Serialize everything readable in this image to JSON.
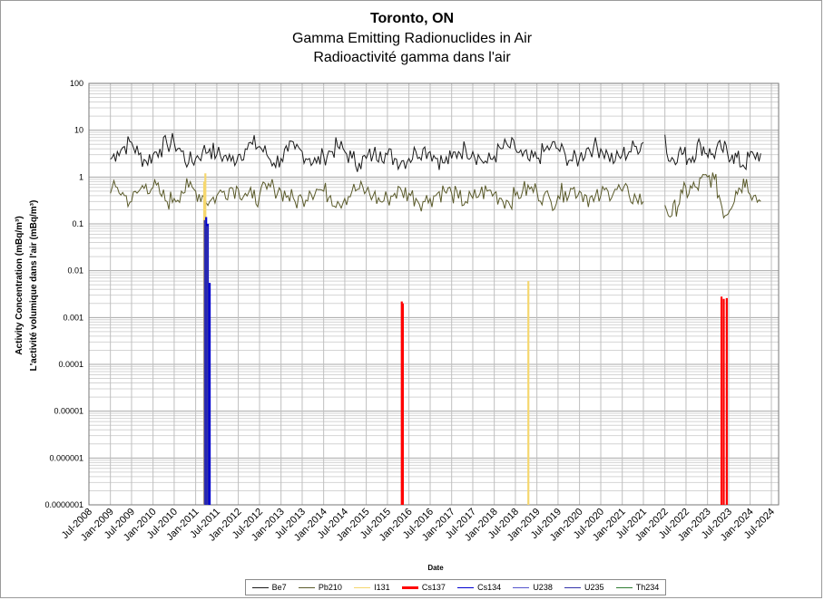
{
  "chart_data": {
    "type": "line",
    "title": "Toronto, ON",
    "subtitle": [
      "Gamma Emitting Radionuclides in Air",
      "Radioactivité gamma dans l'air"
    ],
    "xlabel": "Date",
    "ylabel": [
      "Activity Concentration  (mBq/m³)",
      "L'activité volumique dans l'air (mBq/m³)"
    ],
    "y_scale": "log",
    "ylim": [
      1e-07,
      100
    ],
    "y_tick_labels": [
      "100",
      "10",
      "1",
      "0.1",
      "0.01",
      "0.001",
      "0.0001",
      "0.00001",
      "0.000001",
      "0.0000001"
    ],
    "xlim": [
      "2008-07-01",
      "2024-09-01"
    ],
    "x_tick_labels": [
      "Jul-2008",
      "Jan-2009",
      "Jul-2009",
      "Jan-2010",
      "Jul-2010",
      "Jan-2011",
      "Jul-2011",
      "Jan-2012",
      "Jul-2012",
      "Jan-2013",
      "Jul-2013",
      "Jan-2014",
      "Jul-2014",
      "Jan-2015",
      "Jul-2015",
      "Jan-2016",
      "Jul-2016",
      "Jan-2017",
      "Jul-2017",
      "Jan-2018",
      "Jul-2018",
      "Jan-2019",
      "Jul-2019",
      "Jan-2020",
      "Jul-2020",
      "Jan-2021",
      "Jul-2021",
      "Jan-2022",
      "Jul-2022",
      "Jan-2023",
      "Jul-2023",
      "Jan-2024",
      "Jul-2024"
    ],
    "grid": true,
    "legend_placement": "bottom",
    "series": [
      {
        "name": "Be7",
        "color": "#1a1a1a",
        "kind": "line",
        "points": [
          [
            "2009-01",
            2.4
          ],
          [
            "2009-03",
            3.5
          ],
          [
            "2009-05",
            4.5
          ],
          [
            "2009-07",
            5.5
          ],
          [
            "2009-09",
            3.0
          ],
          [
            "2009-11",
            2.2
          ],
          [
            "2010-01",
            3.0
          ],
          [
            "2010-03",
            4.0
          ],
          [
            "2010-05",
            5.0
          ],
          [
            "2010-07",
            5.5
          ],
          [
            "2010-09",
            3.5
          ],
          [
            "2010-11",
            2.0
          ],
          [
            "2011-01",
            2.5
          ],
          [
            "2011-03",
            3.5
          ],
          [
            "2011-05",
            4.0
          ],
          [
            "2011-07",
            3.0
          ],
          [
            "2011-09",
            2.8
          ],
          [
            "2011-11",
            2.2
          ],
          [
            "2012-01",
            3.0
          ],
          [
            "2012-03",
            4.0
          ],
          [
            "2012-05",
            5.0
          ],
          [
            "2012-07",
            4.5
          ],
          [
            "2012-09",
            3.0
          ],
          [
            "2012-11",
            2.0
          ],
          [
            "2013-01",
            2.5
          ],
          [
            "2013-03",
            3.5
          ],
          [
            "2013-05",
            4.0
          ],
          [
            "2013-07",
            3.5
          ],
          [
            "2013-09",
            2.5
          ],
          [
            "2013-11",
            2.0
          ],
          [
            "2014-01",
            2.8
          ],
          [
            "2014-03",
            3.5
          ],
          [
            "2014-05",
            4.5
          ],
          [
            "2014-07",
            3.5
          ],
          [
            "2014-09",
            2.5
          ],
          [
            "2014-11",
            2.0
          ],
          [
            "2015-01",
            2.5
          ],
          [
            "2015-03",
            3.0
          ],
          [
            "2015-05",
            3.5
          ],
          [
            "2015-07",
            3.0
          ],
          [
            "2015-09",
            2.5
          ],
          [
            "2015-11",
            2.2
          ],
          [
            "2016-01",
            2.5
          ],
          [
            "2016-03",
            3.5
          ],
          [
            "2016-05",
            4.0
          ],
          [
            "2016-07",
            3.5
          ],
          [
            "2016-09",
            2.5
          ],
          [
            "2016-11",
            2.0
          ],
          [
            "2017-01",
            2.5
          ],
          [
            "2017-03",
            3.5
          ],
          [
            "2017-05",
            4.0
          ],
          [
            "2017-07",
            3.5
          ],
          [
            "2017-09",
            2.5
          ],
          [
            "2017-11",
            2.0
          ],
          [
            "2018-01",
            2.8
          ],
          [
            "2018-03",
            4.0
          ],
          [
            "2018-05",
            4.5
          ],
          [
            "2018-07",
            4.0
          ],
          [
            "2018-09",
            2.8
          ],
          [
            "2018-11",
            2.2
          ],
          [
            "2019-01",
            2.5
          ],
          [
            "2019-03",
            3.5
          ],
          [
            "2019-05",
            4.5
          ],
          [
            "2019-07",
            4.0
          ],
          [
            "2019-09",
            3.0
          ],
          [
            "2019-11",
            2.2
          ],
          [
            "2020-01",
            2.5
          ],
          [
            "2020-03",
            4.0
          ],
          [
            "2020-05",
            4.5
          ],
          [
            "2020-07",
            4.0
          ],
          [
            "2020-09",
            3.0
          ],
          [
            "2020-11",
            2.2
          ],
          [
            "2021-01",
            3.0
          ],
          [
            "2021-03",
            3.5
          ],
          [
            "2021-05",
            4.5
          ],
          [
            "2021-07",
            5.5
          ],
          [
            null,
            null
          ],
          [
            "2022-01",
            8.0
          ],
          [
            "2022-02",
            2.2
          ],
          [
            "2022-05",
            3.5
          ],
          [
            "2022-08",
            2.5
          ],
          [
            "2022-11",
            5.0
          ],
          [
            "2023-02",
            3.0
          ],
          [
            "2023-05",
            4.0
          ],
          [
            "2023-08",
            3.0
          ],
          [
            "2023-11",
            1.8
          ],
          [
            "2024-02",
            3.0
          ],
          [
            "2024-04",
            3.2
          ]
        ],
        "jitter": true
      },
      {
        "name": "Pb210",
        "color": "#5a5a2a",
        "kind": "line",
        "points": [
          [
            "2009-01",
            0.45
          ],
          [
            "2009-03",
            0.6
          ],
          [
            "2009-05",
            0.4
          ],
          [
            "2009-07",
            0.3
          ],
          [
            "2009-09",
            0.5
          ],
          [
            "2009-11",
            0.7
          ],
          [
            "2010-01",
            0.6
          ],
          [
            "2010-03",
            0.45
          ],
          [
            "2010-05",
            0.3
          ],
          [
            "2010-07",
            0.35
          ],
          [
            "2010-09",
            0.5
          ],
          [
            "2010-11",
            0.6
          ],
          [
            "2011-01",
            0.5
          ],
          [
            "2011-03",
            0.4
          ],
          [
            "2011-05",
            0.3
          ],
          [
            "2011-07",
            0.4
          ],
          [
            "2011-09",
            0.5
          ],
          [
            "2011-11",
            0.6
          ],
          [
            "2012-01",
            0.55
          ],
          [
            "2012-03",
            0.45
          ],
          [
            "2012-05",
            0.35
          ],
          [
            "2012-07",
            0.4
          ],
          [
            "2012-09",
            0.55
          ],
          [
            "2012-11",
            0.6
          ],
          [
            "2013-01",
            0.5
          ],
          [
            "2013-03",
            0.4
          ],
          [
            "2013-05",
            0.3
          ],
          [
            "2013-07",
            0.35
          ],
          [
            "2013-09",
            0.5
          ],
          [
            "2013-11",
            0.55
          ],
          [
            "2014-01",
            0.5
          ],
          [
            "2014-03",
            0.4
          ],
          [
            "2014-05",
            0.3
          ],
          [
            "2014-07",
            0.35
          ],
          [
            "2014-09",
            0.5
          ],
          [
            "2014-11",
            0.55
          ],
          [
            "2015-01",
            0.5
          ],
          [
            "2015-03",
            0.4
          ],
          [
            "2015-05",
            0.3
          ],
          [
            "2015-07",
            0.35
          ],
          [
            "2015-09",
            0.45
          ],
          [
            "2015-11",
            0.5
          ],
          [
            "2016-01",
            0.45
          ],
          [
            "2016-03",
            0.35
          ],
          [
            "2016-05",
            0.3
          ],
          [
            "2016-07",
            0.35
          ],
          [
            "2016-09",
            0.45
          ],
          [
            "2016-11",
            0.5
          ],
          [
            "2017-01",
            0.45
          ],
          [
            "2017-03",
            0.35
          ],
          [
            "2017-05",
            0.3
          ],
          [
            "2017-07",
            0.35
          ],
          [
            "2017-09",
            0.45
          ],
          [
            "2017-11",
            0.5
          ],
          [
            "2018-01",
            0.45
          ],
          [
            "2018-03",
            0.35
          ],
          [
            "2018-05",
            0.3
          ],
          [
            "2018-07",
            0.4
          ],
          [
            "2018-09",
            0.5
          ],
          [
            "2018-11",
            0.55
          ],
          [
            "2019-01",
            0.5
          ],
          [
            "2019-03",
            0.4
          ],
          [
            "2019-05",
            0.3
          ],
          [
            "2019-07",
            0.4
          ],
          [
            "2019-09",
            0.5
          ],
          [
            "2019-11",
            0.55
          ],
          [
            "2020-01",
            0.5
          ],
          [
            "2020-03",
            0.4
          ],
          [
            "2020-05",
            0.3
          ],
          [
            "2020-07",
            0.4
          ],
          [
            "2020-09",
            0.5
          ],
          [
            "2020-11",
            0.55
          ],
          [
            "2021-01",
            0.5
          ],
          [
            "2021-03",
            0.4
          ],
          [
            "2021-05",
            0.35
          ],
          [
            "2021-07",
            0.3
          ],
          [
            null,
            null
          ],
          [
            "2022-01",
            0.25
          ],
          [
            "2022-03",
            0.15
          ],
          [
            "2022-06",
            0.45
          ],
          [
            "2022-10",
            0.6
          ],
          [
            "2023-01",
            1.0
          ],
          [
            "2023-03",
            0.9
          ],
          [
            "2023-06",
            0.15
          ],
          [
            "2023-09",
            0.5
          ],
          [
            "2023-12",
            0.9
          ],
          [
            "2024-02",
            0.4
          ],
          [
            "2024-04",
            0.3
          ]
        ],
        "jitter": true
      },
      {
        "name": "I131",
        "color": "#f5d76e",
        "kind": "spike",
        "points": [
          [
            "2011-03-15",
            0.8
          ],
          [
            "2011-03-25",
            1.2
          ],
          [
            "2018-10-20",
            0.006
          ]
        ]
      },
      {
        "name": "Cs137",
        "color": "#ff0000",
        "kind": "spike",
        "points": [
          [
            "2015-11-01",
            0.0022
          ],
          [
            "2015-11-10",
            0.002
          ],
          [
            "2023-05-01",
            0.0028
          ],
          [
            "2023-05-20",
            0.0025
          ],
          [
            "2023-06-15",
            0.0026
          ]
        ]
      },
      {
        "name": "Cs134",
        "color": "#0000d0",
        "kind": "spike",
        "points": [
          [
            "2011-04-01",
            0.14
          ],
          [
            "2011-04-15",
            0.1
          ],
          [
            "2011-05-01",
            0.0055
          ]
        ]
      },
      {
        "name": "U238",
        "color": "#5555cc",
        "kind": "spike",
        "points": []
      },
      {
        "name": "U235",
        "color": "#3333aa",
        "kind": "spike",
        "points": [
          [
            "2011-03-20",
            0.12
          ],
          [
            "2011-04-10",
            0.09
          ]
        ]
      },
      {
        "name": "Th234",
        "color": "#2e7d32",
        "kind": "spike",
        "points": []
      }
    ]
  }
}
